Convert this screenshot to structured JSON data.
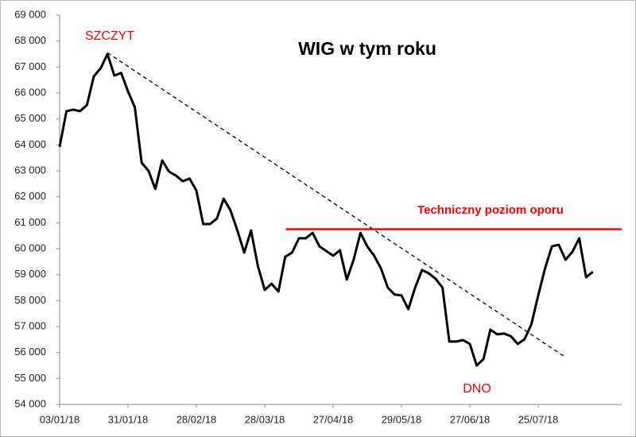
{
  "chart_data": {
    "type": "line",
    "title": "WIG w tym roku",
    "categories": [
      "03/01/18",
      null,
      null,
      null,
      null,
      null,
      null,
      null,
      null,
      null,
      "31/01/18",
      null,
      null,
      null,
      null,
      null,
      null,
      null,
      null,
      null,
      "28/02/18",
      null,
      null,
      null,
      null,
      null,
      null,
      null,
      null,
      null,
      "28/03/18",
      null,
      null,
      null,
      null,
      null,
      null,
      null,
      null,
      null,
      "27/04/18",
      null,
      null,
      null,
      null,
      null,
      null,
      null,
      null,
      null,
      "29/05/18",
      null,
      null,
      null,
      null,
      null,
      null,
      null,
      null,
      null,
      "27/06/18",
      null,
      null,
      null,
      null,
      null,
      null,
      null,
      null,
      null,
      "25/07/18",
      null,
      null,
      null,
      null,
      null,
      null,
      null,
      null
    ],
    "series": [
      {
        "name": "WIG",
        "color": "#000000",
        "values": [
          63920,
          65300,
          65360,
          65300,
          65540,
          66640,
          66950,
          67500,
          66670,
          66770,
          66060,
          65450,
          63310,
          63000,
          62300,
          63400,
          62970,
          62820,
          62600,
          62700,
          62240,
          60950,
          60950,
          61160,
          61930,
          61470,
          60700,
          59850,
          60700,
          59330,
          58410,
          58650,
          58350,
          59690,
          59850,
          60400,
          60400,
          60610,
          60090,
          59910,
          59730,
          59940,
          58810,
          59570,
          60610,
          60090,
          59730,
          59240,
          58500,
          58230,
          58200,
          57670,
          58500,
          59180,
          59050,
          58840,
          58500,
          56420,
          56420,
          56480,
          56330,
          55500,
          55750,
          56880,
          56700,
          56730,
          56630,
          56330,
          56510,
          57090,
          58200,
          59240,
          60090,
          60150,
          59570,
          59880,
          60400,
          58900,
          59110
        ]
      }
    ],
    "ylim": [
      54000,
      69000
    ],
    "yticks": [
      {
        "value": 54000,
        "label": "54 000"
      },
      {
        "value": 55000,
        "label": "55 000"
      },
      {
        "value": 56000,
        "label": "56 000"
      },
      {
        "value": 57000,
        "label": "57 000"
      },
      {
        "value": 58000,
        "label": "58 000"
      },
      {
        "value": 59000,
        "label": "59 000"
      },
      {
        "value": 60000,
        "label": "60 000"
      },
      {
        "value": 61000,
        "label": "61 000"
      },
      {
        "value": 62000,
        "label": "62 000"
      },
      {
        "value": 63000,
        "label": "63 000"
      },
      {
        "value": 64000,
        "label": "64 000"
      },
      {
        "value": 65000,
        "label": "65 000"
      },
      {
        "value": 66000,
        "label": "66 000"
      },
      {
        "value": 67000,
        "label": "67 000"
      },
      {
        "value": 68000,
        "label": "68 000"
      },
      {
        "value": 69000,
        "label": "69 000"
      }
    ],
    "grid": false,
    "annotations": [
      "SZCZYT",
      "DNO"
    ],
    "trend_line": {
      "x": [
        7,
        73.8
      ],
      "y": [
        67550,
        55850
      ],
      "color": "#000000"
    },
    "resistance_line": {
      "label": "Techniczny poziom oporu",
      "x": [
        33.1,
        82.2
      ],
      "y": [
        60750,
        60750
      ],
      "color": "#ff0000"
    }
  }
}
